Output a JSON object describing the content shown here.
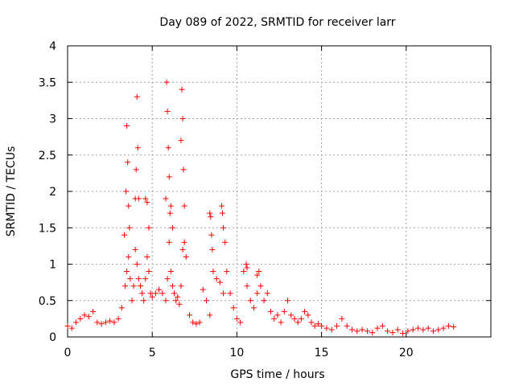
{
  "chart_data": {
    "type": "scatter",
    "title": "Day 089 of 2022, SRMTID for receiver larr",
    "xlabel": "GPS time / hours",
    "ylabel": "SRMTID / TECUs",
    "xlim": [
      0,
      25
    ],
    "ylim": [
      0,
      4
    ],
    "x_ticks": [
      0,
      5,
      10,
      15,
      20
    ],
    "y_ticks": [
      0,
      0.5,
      1,
      1.5,
      2,
      2.5,
      3,
      3.5,
      4
    ],
    "x_tick_labels": [
      "0",
      "5",
      "10",
      "15",
      "20"
    ],
    "y_tick_labels": [
      "0",
      "0.5",
      "1",
      "1.5",
      "2",
      "2.5",
      "3",
      "3.5",
      "4"
    ],
    "grid": true,
    "legend": "none",
    "marker": "+",
    "series": [
      {
        "name": "SRMTID",
        "color": "#ff0000",
        "x": [
          0.0,
          0.25,
          0.5,
          0.75,
          1.0,
          1.25,
          1.5,
          1.75,
          2.0,
          2.25,
          2.5,
          2.75,
          3.0,
          3.2,
          3.4,
          3.5,
          3.6,
          3.7,
          3.8,
          3.9,
          4.0,
          4.1,
          4.2,
          4.3,
          4.4,
          4.5,
          4.6,
          4.7,
          4.8,
          4.9,
          5.0,
          5.2,
          5.4,
          5.6,
          5.8,
          5.9,
          6.0,
          6.1,
          6.2,
          6.3,
          6.4,
          6.5,
          6.6,
          6.7,
          6.8,
          6.9,
          7.0,
          7.2,
          7.4,
          7.6,
          7.8,
          8.0,
          8.2,
          8.4,
          8.6,
          8.8,
          9.0,
          9.2,
          9.4,
          9.6,
          9.8,
          10.0,
          10.2,
          10.4,
          10.6,
          10.8,
          11.0,
          11.2,
          11.4,
          11.6,
          11.8,
          12.0,
          12.2,
          12.4,
          12.6,
          12.8,
          13.0,
          13.2,
          13.4,
          13.6,
          13.8,
          14.0,
          14.2,
          14.4,
          14.6,
          14.8,
          15.0,
          15.3,
          15.6,
          15.9,
          16.2,
          16.5,
          16.8,
          17.1,
          17.4,
          17.7,
          18.0,
          18.3,
          18.6,
          18.9,
          19.2,
          19.5,
          19.8,
          20.1,
          20.4,
          20.7,
          21.0,
          21.3,
          21.6,
          21.9,
          22.2,
          22.5,
          22.8,
          3.35,
          3.45,
          3.5,
          3.55,
          3.6,
          3.65,
          4.0,
          4.05,
          4.1,
          4.15,
          4.2,
          4.6,
          4.7,
          4.8,
          5.8,
          5.85,
          5.9,
          5.95,
          6.0,
          6.05,
          6.1,
          6.2,
          6.7,
          6.75,
          6.8,
          6.85,
          6.9,
          8.4,
          8.45,
          8.5,
          8.55,
          9.1,
          9.15,
          9.2,
          9.3,
          10.55,
          10.6,
          11.2,
          11.3
        ],
        "values": [
          0.15,
          0.12,
          0.2,
          0.25,
          0.3,
          0.28,
          0.35,
          0.2,
          0.18,
          0.2,
          0.22,
          0.2,
          0.25,
          0.4,
          0.7,
          0.9,
          1.1,
          0.8,
          0.5,
          0.7,
          1.2,
          1.0,
          0.8,
          0.7,
          0.6,
          0.5,
          0.8,
          1.1,
          0.9,
          0.6,
          0.55,
          0.6,
          0.65,
          0.6,
          0.5,
          0.8,
          1.3,
          0.9,
          0.7,
          0.6,
          0.5,
          0.55,
          0.45,
          0.7,
          1.2,
          1.3,
          1.1,
          0.3,
          0.2,
          0.18,
          0.2,
          0.65,
          0.5,
          0.3,
          0.9,
          0.8,
          0.75,
          0.6,
          0.9,
          0.6,
          0.4,
          0.25,
          0.2,
          0.9,
          0.7,
          0.5,
          0.4,
          0.6,
          0.7,
          0.5,
          0.6,
          0.35,
          0.25,
          0.3,
          0.2,
          0.35,
          0.5,
          0.3,
          0.25,
          0.2,
          0.25,
          0.35,
          0.3,
          0.2,
          0.15,
          0.18,
          0.15,
          0.12,
          0.1,
          0.15,
          0.25,
          0.15,
          0.1,
          0.08,
          0.1,
          0.08,
          0.06,
          0.12,
          0.15,
          0.08,
          0.06,
          0.1,
          0.05,
          0.08,
          0.1,
          0.12,
          0.1,
          0.12,
          0.08,
          0.1,
          0.12,
          0.15,
          0.14,
          1.4,
          2.0,
          2.9,
          2.4,
          1.8,
          1.5,
          1.9,
          2.3,
          3.3,
          2.6,
          1.9,
          1.9,
          1.85,
          1.5,
          1.9,
          3.5,
          3.1,
          2.6,
          2.2,
          1.7,
          1.8,
          1.5,
          2.7,
          3.4,
          3.0,
          2.3,
          1.8,
          1.7,
          1.65,
          1.4,
          1.2,
          1.8,
          1.7,
          1.5,
          1.3,
          1.0,
          0.95,
          0.85,
          0.9
        ]
      }
    ]
  }
}
